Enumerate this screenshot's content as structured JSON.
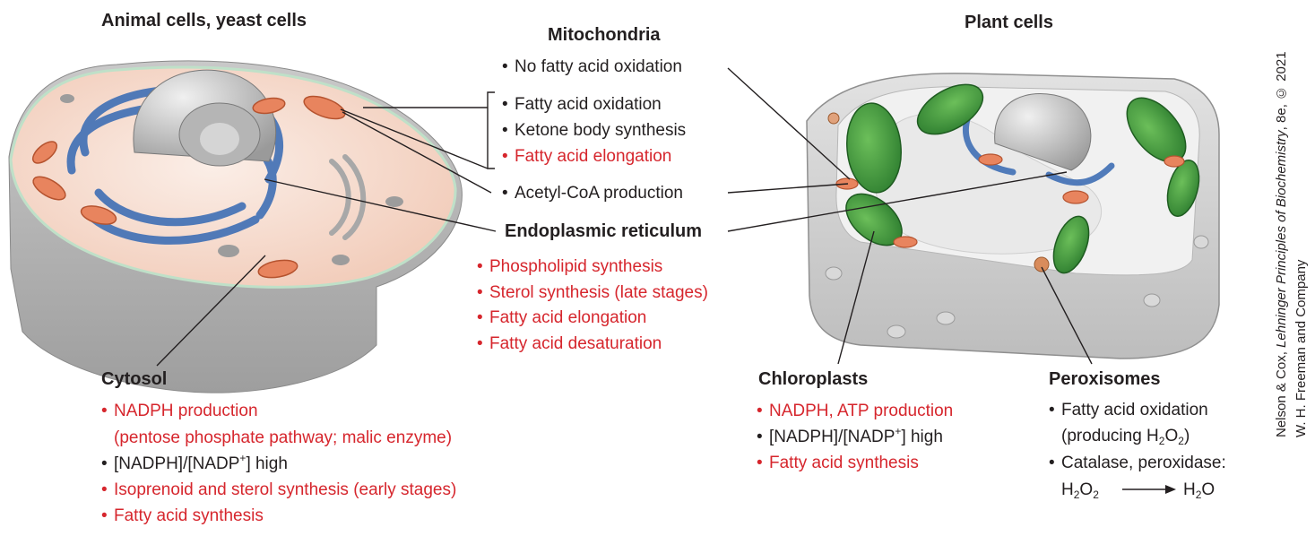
{
  "animal": {
    "title": "Animal cells, yeast cells"
  },
  "plant": {
    "title": "Plant cells"
  },
  "mito": {
    "title": "Mitochondria",
    "no_oxidation": "No fatty acid oxidation",
    "bracket_items": [
      "Fatty acid oxidation",
      "Ketone body synthesis",
      "Fatty acid elongation"
    ],
    "acetyl": "Acetyl-CoA production"
  },
  "er": {
    "title": "Endoplasmic reticulum",
    "items": [
      "Phospholipid synthesis",
      "Sterol synthesis (late stages)",
      "Fatty acid elongation",
      "Fatty acid desaturation"
    ]
  },
  "cytosol": {
    "title": "Cytosol",
    "line1": "NADPH production",
    "line1b": "(pentose phosphate pathway; malic enzyme)",
    "ratio_a": "[NADPH]/[NADP",
    "ratio_sup": "+",
    "ratio_b": "] high",
    "line3": "Isoprenoid and sterol synthesis (early stages)",
    "line4": "Fatty acid synthesis"
  },
  "chloro": {
    "title": "Chloroplasts",
    "line1": "NADPH, ATP production",
    "ratio_a": "[NADPH]/[NADP",
    "ratio_sup": "+",
    "ratio_b": "] high",
    "line3": "Fatty acid synthesis"
  },
  "perox": {
    "title": "Peroxisomes",
    "line1": "Fatty acid oxidation",
    "line1b_a": "(producing H",
    "line1b_s1": "2",
    "line1b_b": "O",
    "line1b_s2": "2",
    "line1b_c": ")",
    "line2": "Catalase, peroxidase:",
    "eq_l_a": "H",
    "eq_l_s1": "2",
    "eq_l_b": "O",
    "eq_l_s2": "2",
    "eq_r_a": "H",
    "eq_r_s1": "2",
    "eq_r_b": "O"
  },
  "credit": {
    "line1_a": "Nelson & Cox, ",
    "line1_italic": "Lehninger Principles of Biochemistry",
    "line1_b": ", 8e, © 2021",
    "line2": "W. H. Freeman and Company"
  },
  "colors": {
    "red_text": "#d6262d",
    "er_blue": "#3f6fb5",
    "mito_orange": "#e8845e",
    "chloroplast_green": "#3b9a3a"
  }
}
